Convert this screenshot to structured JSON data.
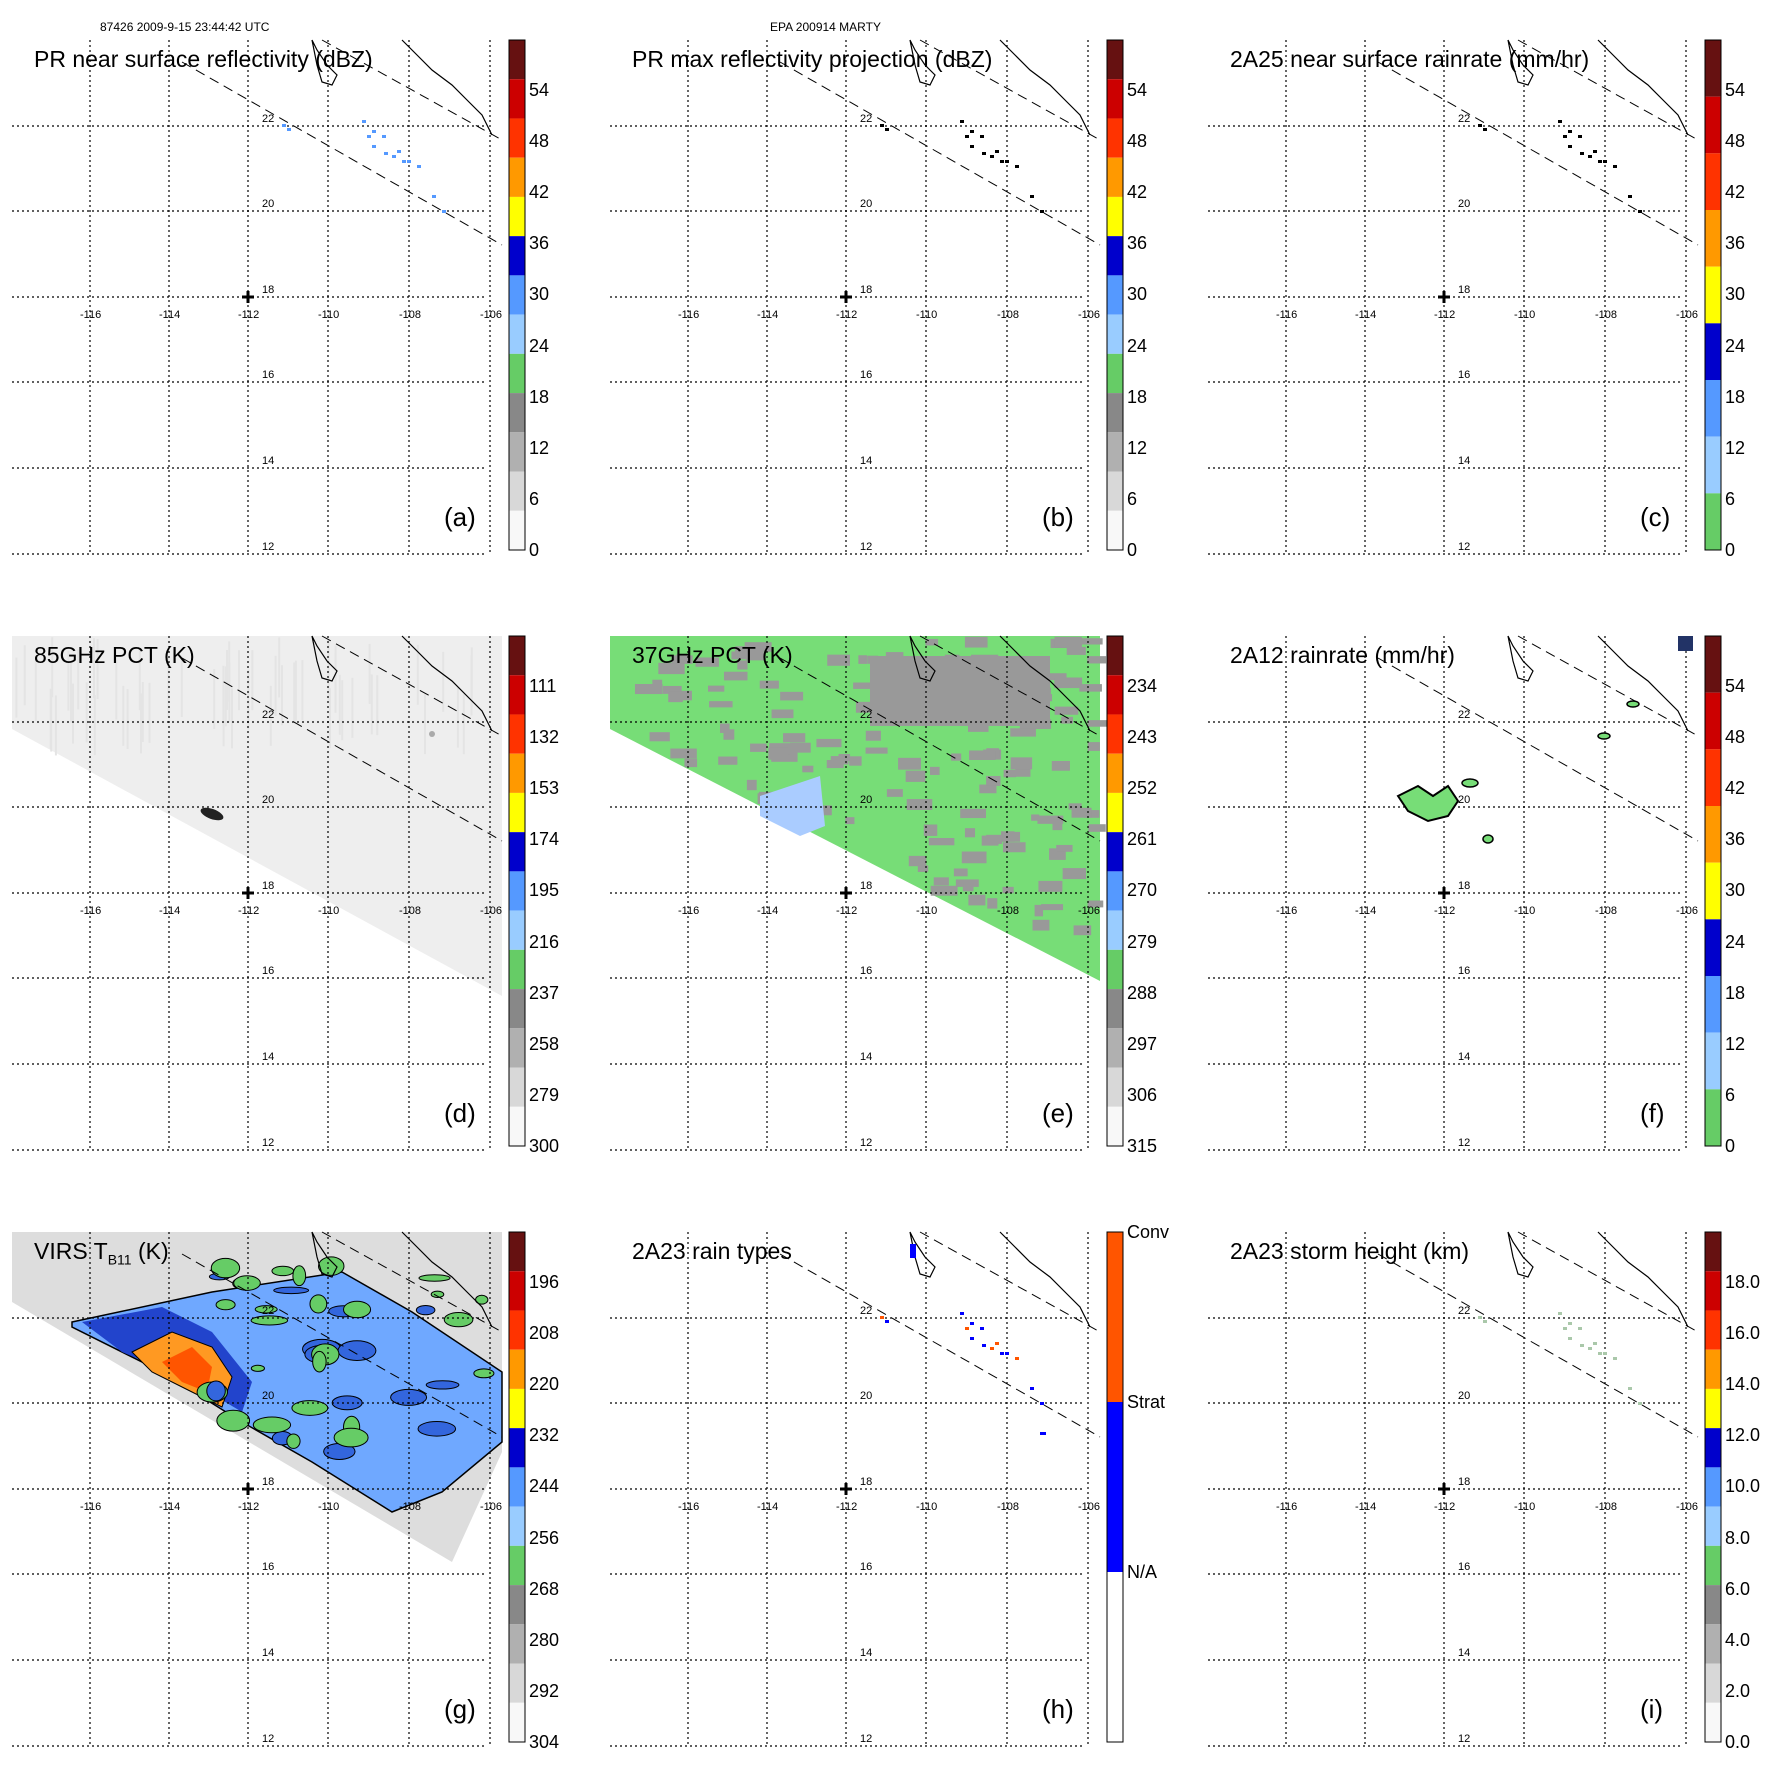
{
  "header": {
    "left": "87426 2009-9-15 23:44:42 UTC",
    "center": "EPA 200914 MARTY"
  },
  "lon_ticks": [
    "-116",
    "-114",
    "-112",
    "-110",
    "-108",
    "-106"
  ],
  "lat_ticks": [
    "22",
    "20",
    "18",
    "16",
    "14",
    "12"
  ],
  "panels": [
    {
      "id": "a",
      "title": "PR near surface reflectivity (dBZ)",
      "label": "(a)",
      "cb_colors": [
        "#f8f8f8",
        "#d8d8d8",
        "#b0b0b0",
        "#888888",
        "#66cc66",
        "#99ccff",
        "#5599ff",
        "#0000cc",
        "#ffff00",
        "#ff9900",
        "#ff3300",
        "#cc0000",
        "#661111"
      ],
      "cb_ticks": [
        "54",
        "48",
        "42",
        "36",
        "30",
        "24",
        "18",
        "12",
        "6",
        "0"
      ],
      "swath": "none",
      "features": "pr"
    },
    {
      "id": "b",
      "title": "PR max reflectivity projection (dBZ)",
      "label": "(b)",
      "cb_colors": [
        "#f8f8f8",
        "#d8d8d8",
        "#b0b0b0",
        "#888888",
        "#66cc66",
        "#99ccff",
        "#5599ff",
        "#0000cc",
        "#ffff00",
        "#ff9900",
        "#ff3300",
        "#cc0000",
        "#661111"
      ],
      "cb_ticks": [
        "54",
        "48",
        "42",
        "36",
        "30",
        "24",
        "18",
        "12",
        "6",
        "0"
      ],
      "swath": "none",
      "features": "pr"
    },
    {
      "id": "c",
      "title": "2A25 near surface rainrate (mm/hr)",
      "label": "(c)",
      "cb_colors": [
        "#66cc66",
        "#99ccff",
        "#5599ff",
        "#0000cc",
        "#ffff00",
        "#ff9900",
        "#ff3300",
        "#cc0000",
        "#661111"
      ],
      "cb_ticks": [
        "54",
        "48",
        "42",
        "36",
        "30",
        "24",
        "18",
        "12",
        "6",
        "0"
      ],
      "swath": "none",
      "features": "pr"
    },
    {
      "id": "d",
      "title": "85GHz PCT (K)",
      "label": "(d)",
      "cb_colors": [
        "#f8f8f8",
        "#d8d8d8",
        "#b0b0b0",
        "#888888",
        "#66cc66",
        "#99ccff",
        "#5599ff",
        "#0000cc",
        "#ffff00",
        "#ff9900",
        "#ff3300",
        "#cc0000",
        "#661111"
      ],
      "cb_ticks": [
        "111",
        "132",
        "153",
        "174",
        "195",
        "216",
        "237",
        "258",
        "279",
        "300"
      ],
      "swath": "gray",
      "features": "none"
    },
    {
      "id": "e",
      "title": "37GHz PCT (K)",
      "label": "(e)",
      "cb_colors": [
        "#f8f8f8",
        "#d8d8d8",
        "#b0b0b0",
        "#888888",
        "#66cc66",
        "#99ccff",
        "#5599ff",
        "#0000cc",
        "#ffff00",
        "#ff9900",
        "#ff3300",
        "#cc0000",
        "#661111"
      ],
      "cb_ticks": [
        "234",
        "243",
        "252",
        "261",
        "270",
        "279",
        "288",
        "297",
        "306",
        "315"
      ],
      "swath": "green",
      "features": "none"
    },
    {
      "id": "f",
      "title": "2A12 rainrate (mm/hr)",
      "label": "(f)",
      "cb_colors": [
        "#66cc66",
        "#99ccff",
        "#5599ff",
        "#0000cc",
        "#ffff00",
        "#ff9900",
        "#ff3300",
        "#cc0000",
        "#661111"
      ],
      "cb_ticks": [
        "54",
        "48",
        "42",
        "36",
        "30",
        "24",
        "18",
        "12",
        "6",
        "0"
      ],
      "swath": "none",
      "features": "tmi"
    },
    {
      "id": "g",
      "title_main": "VIRS T",
      "title_sub": "B11",
      "title_end": " (K)",
      "label": "(g)",
      "cb_colors": [
        "#f8f8f8",
        "#d8d8d8",
        "#b0b0b0",
        "#888888",
        "#66cc66",
        "#99ccff",
        "#5599ff",
        "#0000cc",
        "#ffff00",
        "#ff9900",
        "#ff3300",
        "#cc0000",
        "#661111"
      ],
      "cb_ticks": [
        "196",
        "208",
        "220",
        "232",
        "244",
        "256",
        "268",
        "280",
        "292",
        "304"
      ],
      "swath": "virs",
      "features": "virs"
    },
    {
      "id": "h",
      "title": "2A23 rain types",
      "label": "(h)",
      "cb_colors": [
        "#ffffff",
        "#0000ff",
        "#ff5500"
      ],
      "cb_ticks": [
        "Conv",
        "Strat",
        "N/A"
      ],
      "swath": "none",
      "features": "raintype"
    },
    {
      "id": "i",
      "title": "2A23 storm height (km)",
      "label": "(i)",
      "cb_colors": [
        "#f8f8f8",
        "#d8d8d8",
        "#b0b0b0",
        "#888888",
        "#66cc66",
        "#99ccff",
        "#5599ff",
        "#0000cc",
        "#ffff00",
        "#ff9900",
        "#ff3300",
        "#cc0000",
        "#661111"
      ],
      "cb_ticks": [
        "18.0",
        "16.0",
        "14.0",
        "12.0",
        "10.0",
        "8.0",
        "6.0",
        "4.0",
        "2.0",
        "0.0"
      ],
      "swath": "none",
      "features": "height"
    }
  ]
}
